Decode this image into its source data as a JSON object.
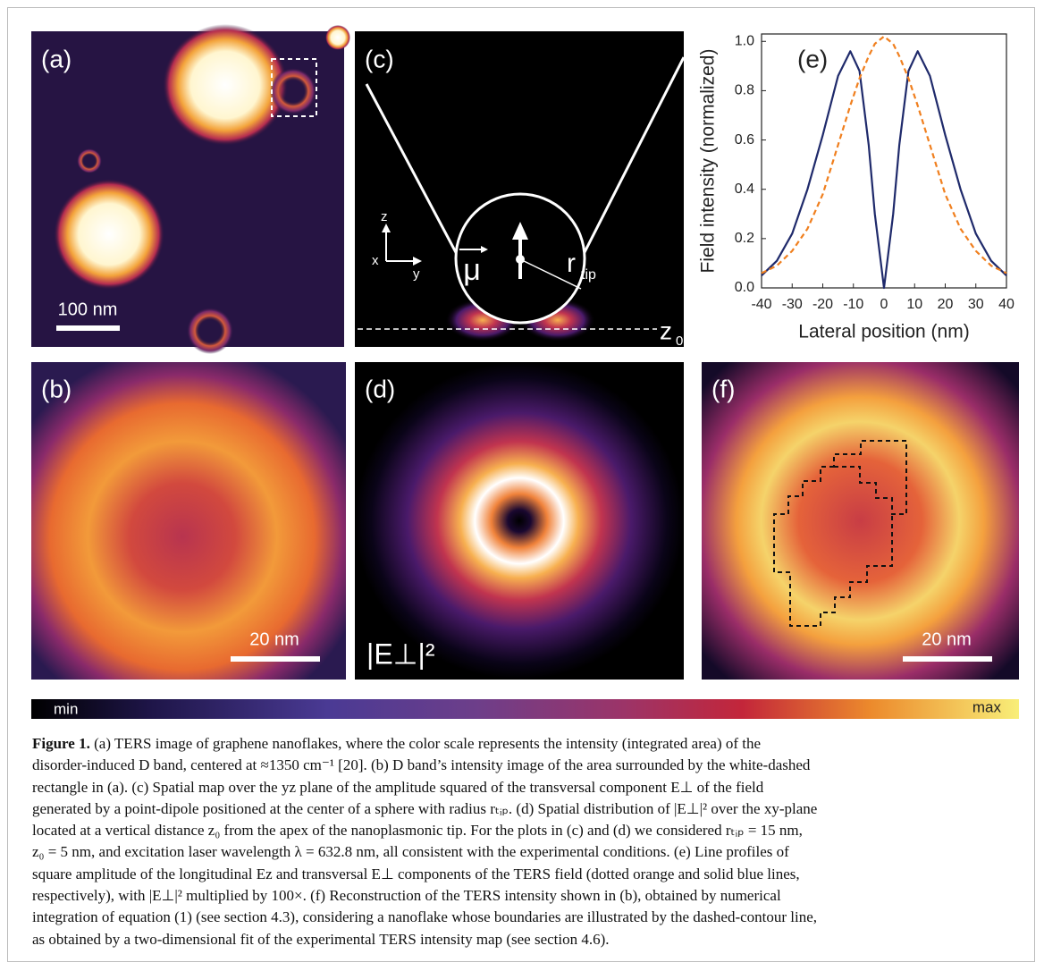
{
  "panels": {
    "a": {
      "label": "(a)",
      "scale_bar": "100 nm"
    },
    "b": {
      "label": "(b)",
      "scale_bar": "20 nm"
    },
    "c": {
      "label": "(c)",
      "axis_z": "z",
      "axis_x": "x",
      "axis_y": "y",
      "dipole": "μ",
      "radius": "r",
      "radius_sub": "tip",
      "plane": "z",
      "plane_sub": "0"
    },
    "d": {
      "label": "(d)",
      "quantity": "|E⊥|²"
    },
    "f": {
      "label": "(f)",
      "scale_bar": "20 nm"
    }
  },
  "colorbar": {
    "min": "min",
    "max": "max"
  },
  "caption": {
    "label": "Figure 1.",
    "lines": [
      "(a) TERS image of graphene nanoflakes, where the color scale represents the intensity (integrated area) of the",
      "disorder-induced D band, centered at ≈1350 cm⁻¹ [20]. (b) D band’s intensity image of the area surrounded by the white-dashed",
      "rectangle in (a). (c) Spatial map over the yz plane of the amplitude squared of the transversal component E⊥ of the field",
      "generated by a point-dipole positioned at the center of a sphere with radius rₜᵢₚ. (d) Spatial distribution of |E⊥|² over the xy-plane",
      "located at a vertical distance z₀ from the apex of the nanoplasmonic tip. For the plots in (c) and (d) we considered rₜᵢₚ = 15 nm,",
      "z₀ = 5 nm, and excitation laser wavelength λ = 632.8 nm, all consistent with the experimental conditions. (e) Line profiles of",
      "square amplitude of the longitudinal Ez and transversal E⊥ components of the TERS field (dotted orange and solid blue lines,",
      "respectively), with |E⊥|² multiplied by 100×. (f) Reconstruction of the TERS intensity shown in (b), obtained by numerical",
      "integration of equation (1) (see section 4.3), considering a nanoflake whose boundaries are illustrated by the dashed-contour line,",
      "as obtained by a two-dimensional fit of the experimental TERS intensity map (see section 4.6)."
    ]
  },
  "chart_data": {
    "type": "line",
    "label": "(e)",
    "x_label": "Lateral position (nm)",
    "y_label": "Field intensity (normalized)",
    "x": [
      -40,
      -35,
      -30,
      -25,
      -20,
      -15,
      -11,
      -8,
      -5,
      -3,
      0,
      3,
      5,
      8,
      11,
      15,
      20,
      25,
      30,
      35,
      40
    ],
    "series": [
      {
        "color": "#1f2a6b",
        "style": "solid",
        "values": [
          0.05,
          0.11,
          0.22,
          0.4,
          0.62,
          0.86,
          0.96,
          0.88,
          0.58,
          0.3,
          0.0,
          0.3,
          0.58,
          0.88,
          0.96,
          0.86,
          0.62,
          0.4,
          0.22,
          0.11,
          0.05
        ]
      },
      {
        "color": "#f07f1e",
        "style": "dashed",
        "values": [
          0.06,
          0.09,
          0.15,
          0.24,
          0.38,
          0.58,
          0.74,
          0.85,
          0.94,
          0.99,
          1.02,
          0.99,
          0.94,
          0.85,
          0.74,
          0.58,
          0.38,
          0.24,
          0.15,
          0.09,
          0.06
        ]
      }
    ],
    "xlim": [
      -40,
      40
    ],
    "xticks": [
      -40,
      -30,
      -20,
      -10,
      0,
      10,
      20,
      30,
      40
    ],
    "ylim": [
      0,
      1.03
    ],
    "yticks": [
      {
        "value": 0,
        "label": "0.0"
      },
      0.2,
      0.4,
      0.6,
      0.8,
      {
        "value": 1,
        "label": "1.0"
      }
    ]
  }
}
